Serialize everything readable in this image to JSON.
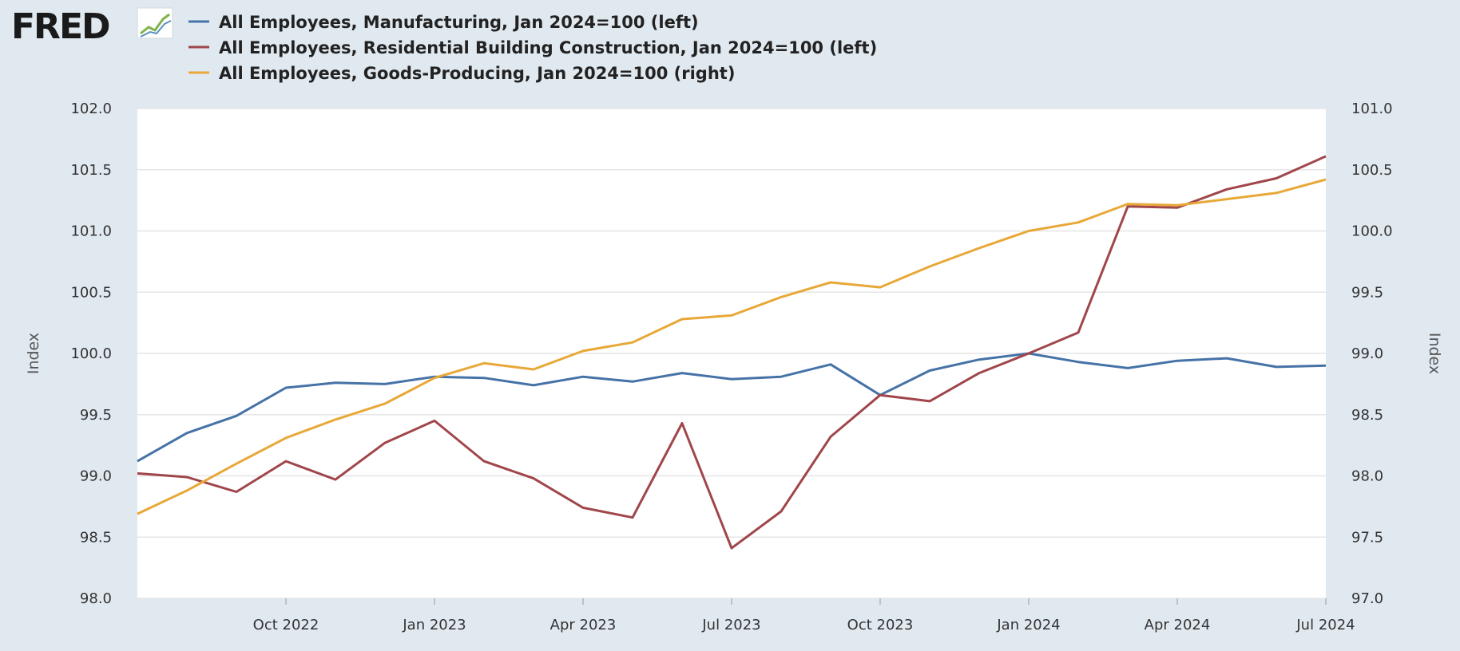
{
  "logo": {
    "text": "FRED"
  },
  "chart_data": {
    "type": "line",
    "title": "",
    "x": [
      "Jul 2022",
      "Aug 2022",
      "Sep 2022",
      "Oct 2022",
      "Nov 2022",
      "Dec 2022",
      "Jan 2023",
      "Feb 2023",
      "Mar 2023",
      "Apr 2023",
      "May 2023",
      "Jun 2023",
      "Jul 2023",
      "Aug 2023",
      "Sep 2023",
      "Oct 2023",
      "Nov 2023",
      "Dec 2023",
      "Jan 2024",
      "Feb 2024",
      "Mar 2024",
      "Apr 2024",
      "May 2024",
      "Jun 2024",
      "Jul 2024"
    ],
    "x_tick_labels": [
      "Oct 2022",
      "Jan 2023",
      "Apr 2023",
      "Jul 2023",
      "Oct 2023",
      "Jan 2024",
      "Apr 2024",
      "Jul 2024"
    ],
    "x_tick_index": [
      3,
      6,
      9,
      12,
      15,
      18,
      21,
      24
    ],
    "ylabel_left": "Index",
    "ylabel_right": "Index",
    "ylim_left": [
      98.0,
      102.0
    ],
    "ylim_right": [
      97.0,
      101.0
    ],
    "yticks_left": [
      "98.0",
      "98.5",
      "99.0",
      "99.5",
      "100.0",
      "100.5",
      "101.0",
      "101.5",
      "102.0"
    ],
    "yticks_right": [
      "97.0",
      "97.5",
      "98.0",
      "98.5",
      "99.0",
      "99.5",
      "100.0",
      "100.5",
      "101.0"
    ],
    "grid": true,
    "legend_position": "top-left",
    "series": [
      {
        "name": "All Employees, Manufacturing, Jan 2024=100 (left)",
        "axis": "left",
        "color": "#4572a7",
        "values": [
          99.12,
          99.35,
          99.49,
          99.72,
          99.76,
          99.75,
          99.81,
          99.8,
          99.74,
          99.81,
          99.77,
          99.84,
          99.79,
          99.81,
          99.91,
          99.66,
          99.86,
          99.95,
          100.0,
          99.93,
          99.88,
          99.94,
          99.96,
          99.89,
          99.9
        ]
      },
      {
        "name": "All Employees, Residential Building Construction, Jan 2024=100 (left)",
        "axis": "left",
        "color": "#a0464b",
        "values": [
          99.02,
          98.99,
          98.87,
          99.12,
          98.97,
          99.27,
          99.45,
          99.12,
          98.98,
          98.74,
          98.66,
          99.43,
          98.41,
          98.71,
          99.32,
          99.66,
          99.61,
          99.84,
          100.0,
          100.17,
          101.2,
          101.19,
          101.34,
          101.43,
          101.61
        ]
      },
      {
        "name": "All Employees, Goods-Producing, Jan 2024=100 (right)",
        "axis": "right",
        "color": "#e8a838",
        "values": [
          97.69,
          97.88,
          98.1,
          98.31,
          98.46,
          98.59,
          98.8,
          98.92,
          98.87,
          99.02,
          99.09,
          99.28,
          99.31,
          99.46,
          99.58,
          99.54,
          99.71,
          99.86,
          100.0,
          100.07,
          100.22,
          100.21,
          100.26,
          100.31,
          100.42
        ]
      }
    ]
  }
}
